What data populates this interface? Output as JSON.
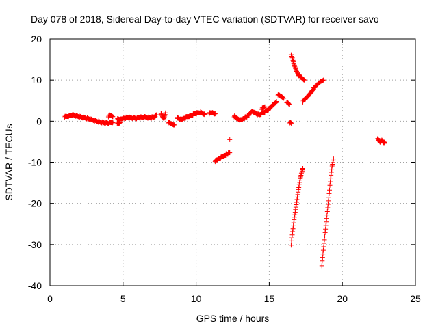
{
  "chart_data": {
    "type": "scatter",
    "title": "Day 078 of 2018, Sidereal Day-to-day VTEC variation (SDTVAR) for receiver savo",
    "xlabel": "GPS time / hours",
    "ylabel": "SDTVAR / TECUs",
    "xlim": [
      0,
      25
    ],
    "ylim": [
      -40,
      20
    ],
    "xticks": [
      "0",
      "5",
      "10",
      "15",
      "20",
      "25"
    ],
    "yticks": [
      "20",
      "10",
      "0",
      "-10",
      "-20",
      "-30",
      "-40"
    ],
    "grid": true,
    "marker": "+",
    "color": "#ff0000",
    "segments": [
      {
        "x": [
          1.0,
          1.3,
          1.6,
          1.9,
          2.2,
          2.5,
          2.8,
          3.1,
          3.4,
          3.7,
          4.0,
          4.3
        ],
        "y": [
          1.0,
          1.3,
          1.5,
          1.2,
          0.9,
          0.7,
          0.4,
          0.1,
          -0.2,
          -0.4,
          -0.5,
          -0.3
        ]
      },
      {
        "x": [
          4.0,
          4.1,
          4.2,
          4.3
        ],
        "y": [
          1.2,
          1.4,
          1.3,
          1.1
        ]
      },
      {
        "x": [
          4.6,
          4.8,
          5.0,
          5.3,
          5.6,
          5.9,
          6.2,
          6.5,
          6.8,
          7.1,
          7.3
        ],
        "y": [
          0.5,
          0.4,
          0.7,
          0.9,
          0.8,
          0.7,
          0.9,
          1.0,
          0.8,
          1.0,
          1.5
        ]
      },
      {
        "x": [
          4.6,
          4.7,
          4.8
        ],
        "y": [
          -0.5,
          -0.8,
          -0.3
        ]
      },
      {
        "x": [
          7.6,
          7.7,
          7.8,
          7.9
        ],
        "y": [
          2.0,
          1.0,
          0.5,
          2.0
        ]
      },
      {
        "x": [
          8.1,
          8.3,
          8.5
        ],
        "y": [
          -0.3,
          -0.7,
          -0.9
        ]
      },
      {
        "x": [
          8.7,
          8.9,
          9.1,
          9.4,
          9.7,
          10.0,
          10.3,
          10.6
        ],
        "y": [
          0.8,
          0.4,
          0.6,
          1.1,
          1.5,
          1.9,
          2.1,
          1.7
        ]
      },
      {
        "x": [
          10.9,
          11.1,
          11.3
        ],
        "y": [
          1.9,
          2.0,
          1.8
        ]
      },
      {
        "x": [
          11.3,
          11.5,
          11.7,
          11.9,
          12.1,
          12.3
        ],
        "y": [
          -9.7,
          -9.3,
          -8.8,
          -8.4,
          -8.0,
          -7.7
        ]
      },
      {
        "x": [
          12.3
        ],
        "y": [
          -4.5
        ]
      },
      {
        "x": [
          12.6,
          12.8,
          13.0,
          13.2,
          13.4,
          13.6,
          13.8,
          14.0,
          14.3,
          14.6,
          14.9,
          15.2,
          15.5
        ],
        "y": [
          1.2,
          0.6,
          0.3,
          0.6,
          1.0,
          1.5,
          2.3,
          2.1,
          1.5,
          2.1,
          2.7,
          3.7,
          4.8
        ]
      },
      {
        "x": [
          14.5,
          14.7
        ],
        "y": [
          3.0,
          3.5
        ]
      },
      {
        "x": [
          15.6,
          15.8,
          16.0
        ],
        "y": [
          6.5,
          6.0,
          5.6
        ]
      },
      {
        "x": [
          16.2,
          16.4
        ],
        "y": [
          4.6,
          4.0
        ]
      },
      {
        "x": [
          16.4,
          16.5
        ],
        "y": [
          -0.3,
          -0.5
        ]
      },
      {
        "x": [
          16.5,
          16.6,
          16.7,
          16.8,
          16.9,
          17.0,
          17.2,
          17.4
        ],
        "y": [
          16.3,
          15.0,
          13.8,
          12.8,
          12.0,
          11.3,
          10.5,
          10.0
        ]
      },
      {
        "x": [
          16.5,
          16.6,
          16.7,
          16.8,
          16.9,
          17.0,
          17.1,
          17.2,
          17.3
        ],
        "y": [
          -30.0,
          -27.0,
          -24.0,
          -21.5,
          -19.0,
          -16.5,
          -14.5,
          -12.8,
          -11.5
        ]
      },
      {
        "x": [
          17.3,
          17.5,
          17.7,
          17.9,
          18.1,
          18.3,
          18.5,
          18.7
        ],
        "y": [
          4.8,
          5.5,
          6.3,
          7.3,
          8.2,
          8.9,
          9.5,
          10.0
        ]
      },
      {
        "x": [
          18.6,
          18.7,
          18.8,
          18.9,
          19.0,
          19.1,
          19.2,
          19.3,
          19.4
        ],
        "y": [
          -35.0,
          -31.5,
          -28.0,
          -24.5,
          -21.0,
          -17.5,
          -14.0,
          -11.0,
          -9.2
        ]
      },
      {
        "x": [
          22.4,
          22.5,
          22.6,
          22.7,
          22.9
        ],
        "y": [
          -4.2,
          -4.8,
          -5.2,
          -4.6,
          -5.4
        ]
      }
    ]
  }
}
